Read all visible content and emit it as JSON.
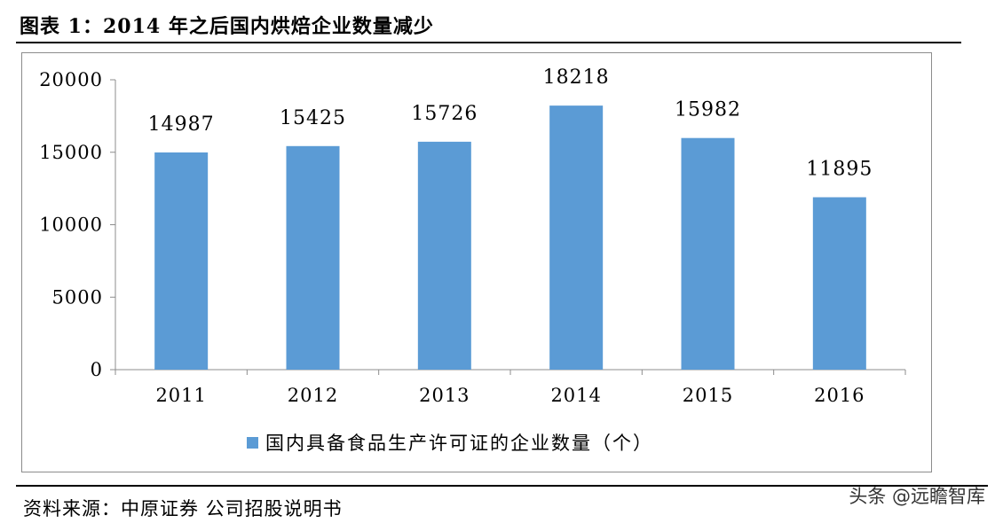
{
  "header": {
    "title": "图表 1：2014 年之后国内烘焙企业数量减少"
  },
  "footer": {
    "source": "资料来源：中原证券 公司招股说明书",
    "watermark": "头条 @远瞻智库"
  },
  "colors": {
    "bar": "#5b9bd5",
    "axis": "#8c8c8c"
  },
  "chart_data": {
    "type": "bar",
    "categories": [
      "2011",
      "2012",
      "2013",
      "2014",
      "2015",
      "2016"
    ],
    "series": [
      {
        "name": "国内具备食品生产许可证的企业数量（个）",
        "values": [
          14987,
          15425,
          15726,
          18218,
          15982,
          11895
        ]
      }
    ],
    "ylim": [
      0,
      20000
    ],
    "yticks": [
      0,
      5000,
      10000,
      15000,
      20000
    ],
    "xlabel": "",
    "ylabel": "",
    "grid": false,
    "legend_position": "bottom",
    "data_labels": true
  }
}
